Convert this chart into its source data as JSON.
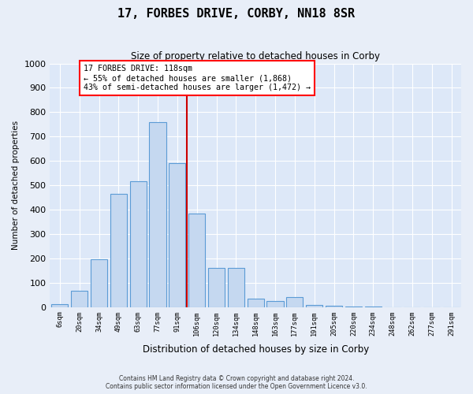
{
  "title": "17, FORBES DRIVE, CORBY, NN18 8SR",
  "subtitle": "Size of property relative to detached houses in Corby",
  "xlabel": "Distribution of detached houses by size in Corby",
  "ylabel": "Number of detached properties",
  "footer_line1": "Contains HM Land Registry data © Crown copyright and database right 2024.",
  "footer_line2": "Contains public sector information licensed under the Open Government Licence v3.0.",
  "categories": [
    "6sqm",
    "20sqm",
    "34sqm",
    "49sqm",
    "63sqm",
    "77sqm",
    "91sqm",
    "106sqm",
    "120sqm",
    "134sqm",
    "148sqm",
    "163sqm",
    "177sqm",
    "191sqm",
    "205sqm",
    "220sqm",
    "234sqm",
    "248sqm",
    "262sqm",
    "277sqm",
    "291sqm"
  ],
  "values": [
    10,
    65,
    195,
    465,
    515,
    760,
    590,
    385,
    160,
    160,
    35,
    25,
    40,
    8,
    5,
    2,
    1,
    0,
    0,
    0,
    0
  ],
  "bar_color": "#c5d8f0",
  "bar_edge_color": "#5b9bd5",
  "background_color": "#dde8f8",
  "grid_color": "#ffffff",
  "property_line_x": 7,
  "annotation_text": "17 FORBES DRIVE: 118sqm\n← 55% of detached houses are smaller (1,868)\n43% of semi-detached houses are larger (1,472) →",
  "vline_color": "#cc0000",
  "ylim": [
    0,
    1000
  ],
  "yticks": [
    0,
    100,
    200,
    300,
    400,
    500,
    600,
    700,
    800,
    900,
    1000
  ]
}
